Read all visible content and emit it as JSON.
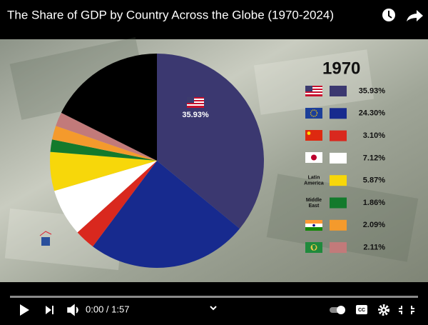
{
  "video": {
    "title": "The Share of GDP by Country Across the Globe (1970-2024)",
    "time": "0:00 / 1:57"
  },
  "chart_data": {
    "type": "pie",
    "title": "1970",
    "categories": [
      null,
      null,
      null,
      null,
      "Latin America",
      "Middle East",
      null,
      null,
      null
    ],
    "values": [
      35.93,
      24.3,
      3.1,
      7.12,
      5.87,
      1.86,
      2.09,
      2.11,
      17.62
    ],
    "value_labels": [
      "35.93%",
      "24.30%",
      "3.10%",
      "7.12%",
      "5.87%",
      "1.86%",
      "2.09%",
      "2.11%",
      null
    ],
    "colors": [
      "#3b3870",
      "#172a8e",
      "#d9281e",
      "#ffffff",
      "#f7d70a",
      "#137a2c",
      "#f49a2c",
      "#c27a7a",
      "#000000"
    ]
  }
}
